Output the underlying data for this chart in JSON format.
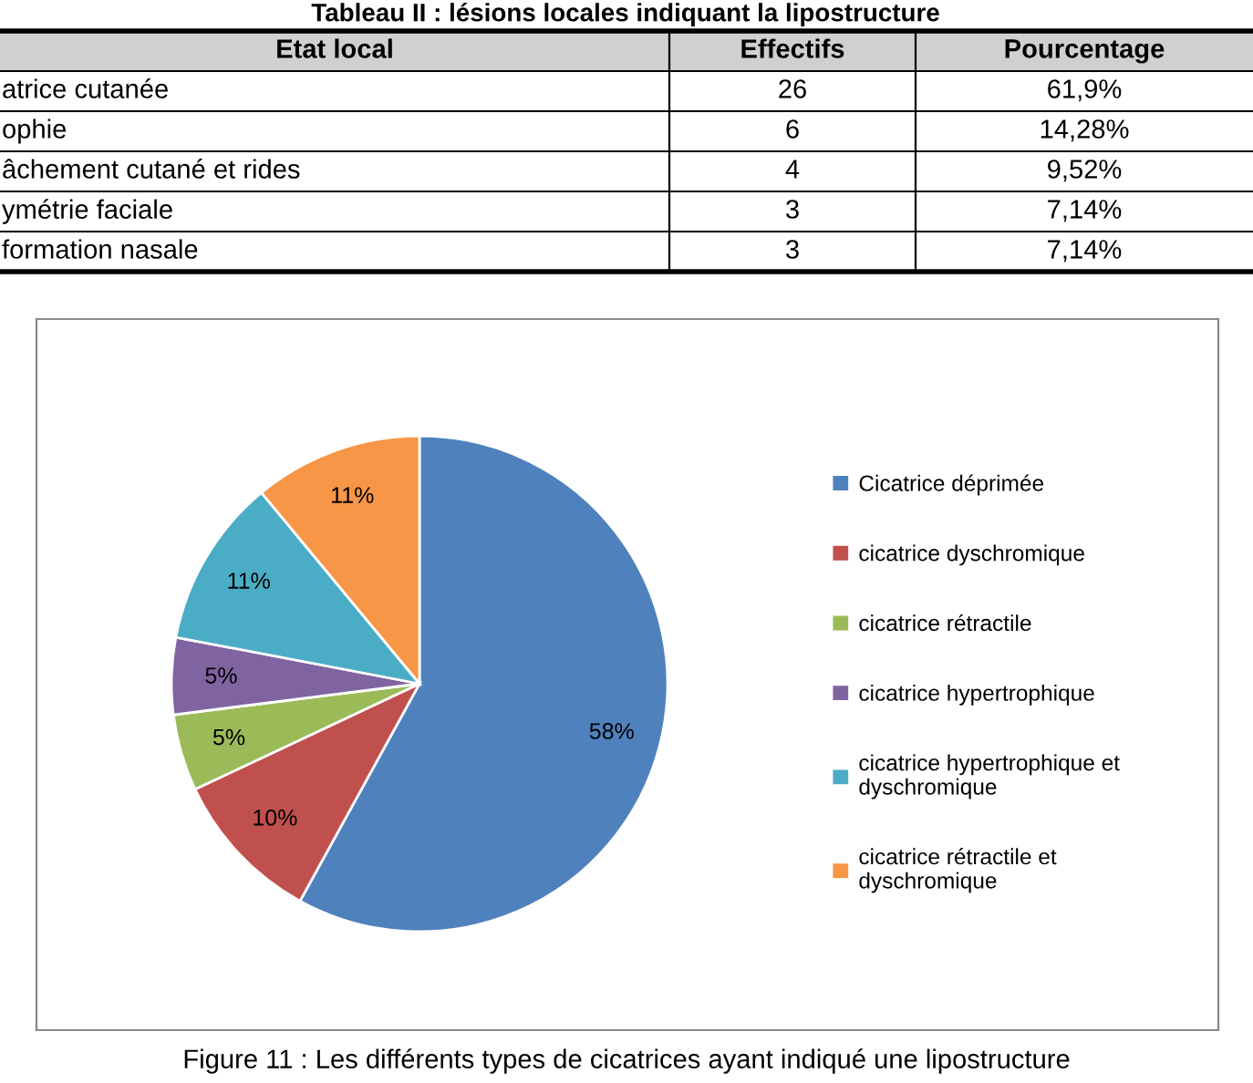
{
  "chart_data": [
    {
      "type": "other",
      "data_labels": true,
      "title": "Tableau II : lésions locales indiquant la lipostructure",
      "annotations": [
        "Etat local"
      ],
      "categories": [
        "atrice cutanée",
        "ophie",
        "âchement cutané et rides",
        "ymétrie faciale",
        "formation nasale"
      ],
      "series": [
        {
          "name": "Effectifs",
          "values": [
            26,
            6,
            4,
            3,
            3
          ]
        },
        {
          "name": "Pourcentage",
          "values": [
            61.9,
            14.28,
            9.52,
            7.14,
            7.14
          ],
          "value_labels": [
            "61,9%",
            "14,28%",
            "9,52%",
            "7,14%",
            "7,14%"
          ]
        }
      ]
    },
    {
      "type": "pie",
      "categories": [
        "Cicatrice déprimée",
        "cicatrice dyschromique",
        "cicatrice rétractile",
        "cicatrice hypertrophique",
        "cicatrice hypertrophique et dyschromique",
        "cicatrice rétractile et dyschromique"
      ],
      "values": [
        58,
        10,
        5,
        5,
        11,
        11
      ],
      "value_labels": [
        "58%",
        "10%",
        "5%",
        "5%",
        "11%",
        "11%"
      ],
      "colors": [
        "#4f81bd",
        "#c0504d",
        "#9bbb59",
        "#8064a2",
        "#4bacc6",
        "#f79646"
      ],
      "legend": "right",
      "annotations": [
        "Figure 11 : Les différents types de cicatrices ayant indiqué une lipostructure"
      ]
    }
  ]
}
